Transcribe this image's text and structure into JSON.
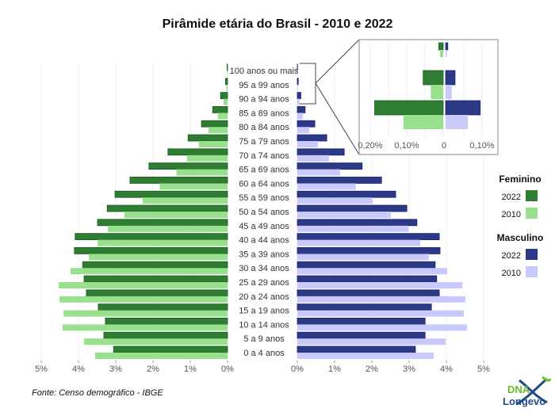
{
  "chart_data": {
    "type": "bar",
    "title": "Pirâmide etária do Brasil - 2010 e 2022",
    "source": "Fonte: Censo demográfico - IBGE",
    "categories": [
      "100 anos ou mais",
      "95 a 99 anos",
      "90 a 94 anos",
      "85 a 89 anos",
      "80 a 84 anos",
      "75 a 79 anos",
      "70 a 74 anos",
      "65 a 69 anos",
      "60 a 64 anos",
      "55 a 59 anos",
      "50 a 54 anos",
      "45 a 49 anos",
      "40 a 44 anos",
      "35 a 39 anos",
      "30 a 34 anos",
      "25 a 29 anos",
      "20 a 24 anos",
      "15 a 19 anos",
      "10 a 14 anos",
      "5 a 9 anos",
      "0 a 4 anos"
    ],
    "series": [
      {
        "name": "Feminino 2022",
        "group": "Feminino",
        "year": "2022",
        "color": "#2e7d32",
        "values": [
          0.012,
          0.055,
          0.188,
          0.4,
          0.7,
          1.06,
          1.6,
          2.11,
          2.62,
          3.02,
          3.23,
          3.49,
          4.09,
          4.11,
          3.89,
          3.85,
          3.79,
          3.47,
          3.28,
          3.32,
          3.06
        ]
      },
      {
        "name": "Feminino 2010",
        "group": "Feminino",
        "year": "2010",
        "color": "#98e08e",
        "values": [
          0.009,
          0.034,
          0.109,
          0.26,
          0.51,
          0.77,
          1.09,
          1.37,
          1.82,
          2.28,
          2.77,
          3.21,
          3.49,
          3.72,
          4.21,
          4.53,
          4.51,
          4.4,
          4.43,
          3.85,
          3.55
        ]
      },
      {
        "name": "Masculino 2022",
        "group": "Masculino",
        "year": "2022",
        "color": "#2c3a86",
        "values": [
          0.006,
          0.026,
          0.095,
          0.21,
          0.47,
          0.79,
          1.26,
          1.74,
          2.26,
          2.64,
          2.94,
          3.21,
          3.81,
          3.83,
          3.7,
          3.74,
          3.81,
          3.6,
          3.43,
          3.43,
          3.17
        ]
      },
      {
        "name": "Masculino 2010",
        "group": "Masculino",
        "year": "2010",
        "color": "#c9c9fb",
        "values": [
          0.004,
          0.017,
          0.061,
          0.15,
          0.32,
          0.55,
          0.85,
          1.15,
          1.57,
          2.02,
          2.51,
          2.98,
          3.3,
          3.53,
          4.02,
          4.43,
          4.51,
          4.47,
          4.55,
          3.98,
          3.66
        ]
      }
    ],
    "xlim": [
      0,
      5
    ],
    "left_ticks": [
      "5%",
      "4%",
      "3%",
      "2%",
      "1%",
      "0%"
    ],
    "right_ticks": [
      "0%",
      "1%",
      "2%",
      "3%",
      "4%",
      "5%"
    ],
    "inset": {
      "categories": [
        "100 anos ou mais",
        "95 a 99 anos",
        "90 a 94 anos"
      ],
      "ticks": [
        "0,20%",
        "0,10%",
        "0",
        "0,10%"
      ]
    },
    "legend": {
      "groups": [
        {
          "title": "Feminino",
          "items": [
            {
              "label": "2022",
              "color": "#2e7d32"
            },
            {
              "label": "2010",
              "color": "#98e08e"
            }
          ]
        },
        {
          "title": "Masculino",
          "items": [
            {
              "label": "2022",
              "color": "#2c3a86"
            },
            {
              "label": "2010",
              "color": "#c9c9fb"
            }
          ]
        }
      ],
      "position": "right"
    },
    "grid": true
  },
  "logo": {
    "line1": "DNA",
    "line2": "Longevo"
  }
}
